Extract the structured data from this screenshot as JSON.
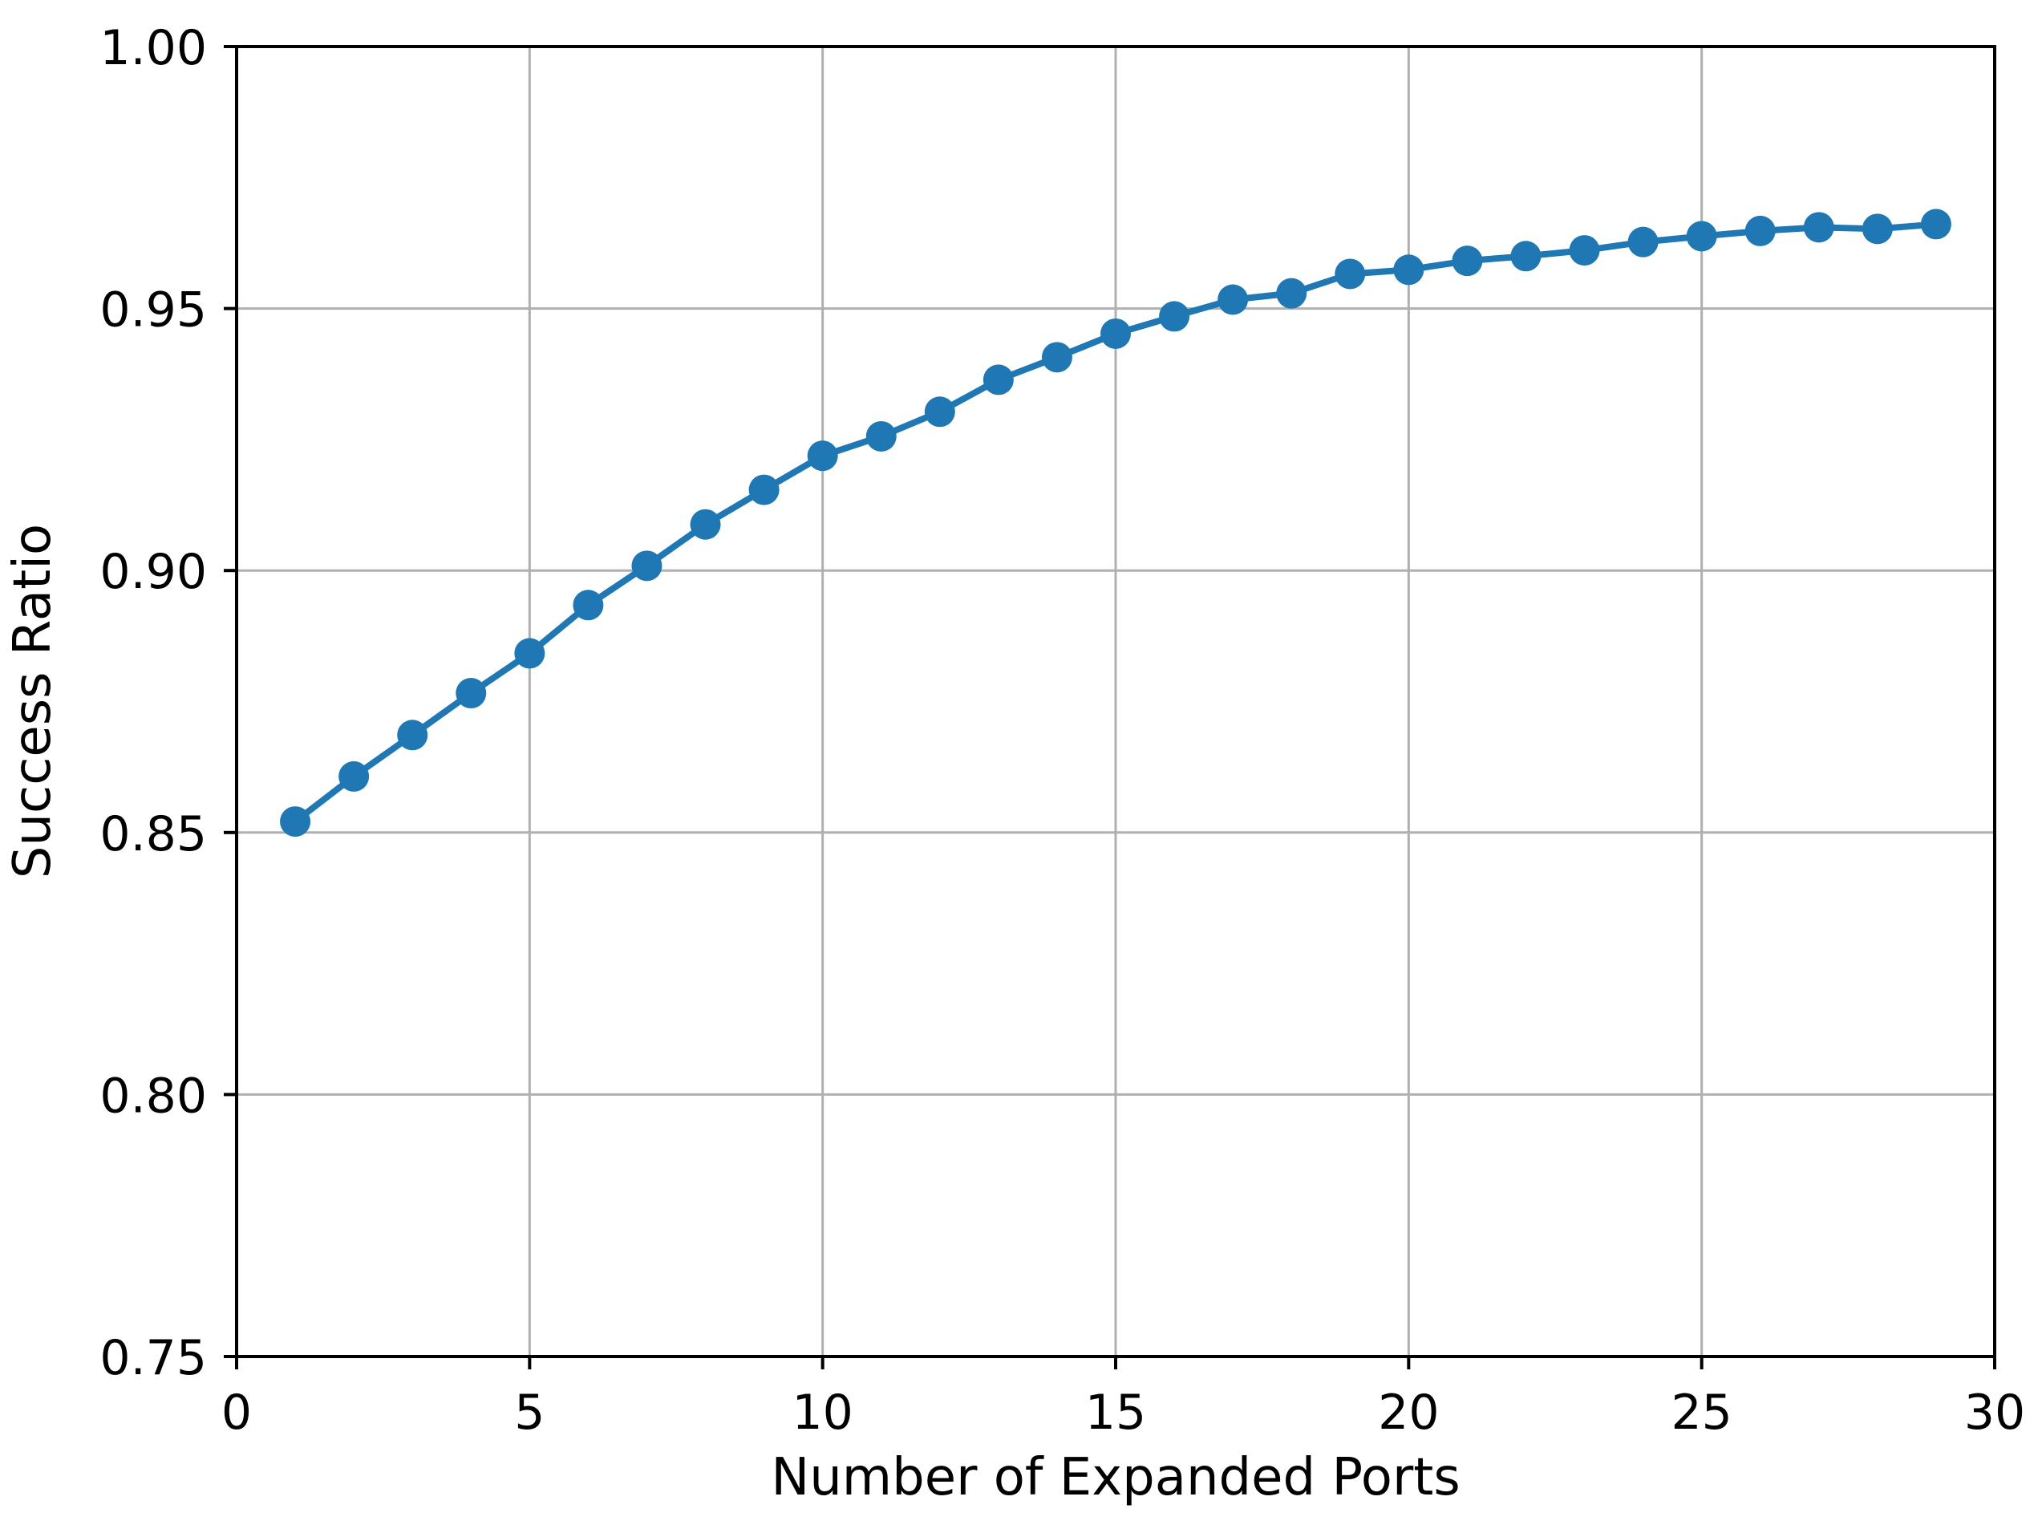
{
  "chart_data": {
    "type": "line",
    "title": "",
    "xlabel": "Number of Expanded Ports",
    "ylabel": "Success Ratio",
    "x": [
      1,
      2,
      3,
      4,
      5,
      6,
      7,
      8,
      9,
      10,
      11,
      12,
      13,
      14,
      15,
      16,
      17,
      18,
      19,
      20,
      21,
      22,
      23,
      24,
      25,
      26,
      27,
      28,
      29
    ],
    "y": [
      0.8521,
      0.8607,
      0.8686,
      0.8766,
      0.8842,
      0.8934,
      0.9009,
      0.9088,
      0.9154,
      0.9219,
      0.9256,
      0.9303,
      0.9364,
      0.9407,
      0.9452,
      0.9485,
      0.9517,
      0.9529,
      0.9566,
      0.9574,
      0.9591,
      0.96,
      0.9611,
      0.9627,
      0.9638,
      0.9648,
      0.9655,
      0.9652,
      0.9661
    ],
    "series_name": "Success Ratio",
    "xlim": [
      0,
      30
    ],
    "ylim": [
      0.75,
      1.0
    ],
    "xticks": [
      0,
      5,
      10,
      15,
      20,
      25,
      30
    ],
    "xtick_labels": [
      "0",
      "5",
      "10",
      "15",
      "20",
      "25",
      "30"
    ],
    "yticks": [
      0.75,
      0.8,
      0.85,
      0.9,
      0.95,
      1.0
    ],
    "ytick_labels": [
      "0.75",
      "0.80",
      "0.85",
      "0.90",
      "0.95",
      "1.00"
    ],
    "grid": true,
    "legend": "none",
    "marker": "circle",
    "line_color": "#1f77b4",
    "grid_color": "#b0b0b0",
    "axis_color": "#000000",
    "background_color": "#ffffff"
  }
}
